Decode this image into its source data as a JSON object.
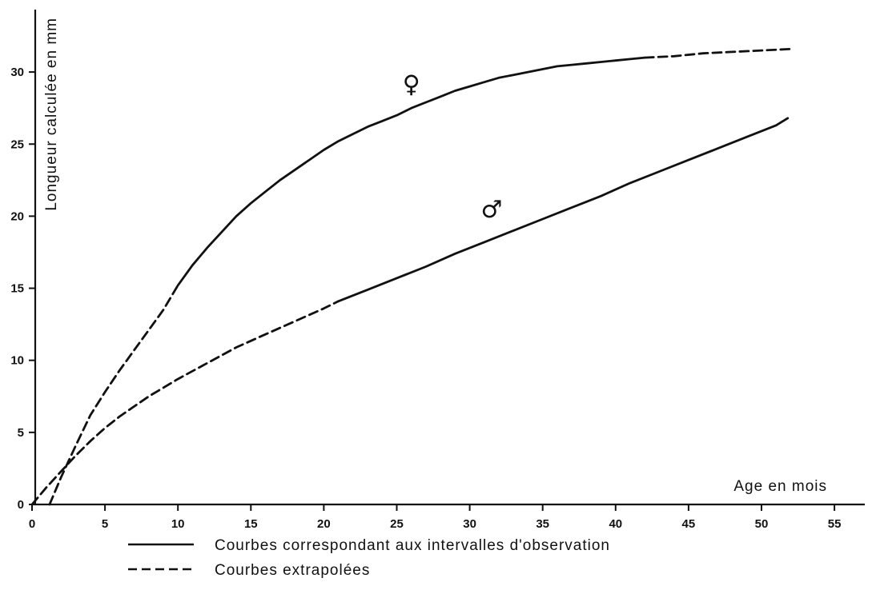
{
  "chart_data": {
    "type": "line",
    "xlabel": "Age en mois",
    "ylabel": "Longueur calculée en mm",
    "xlim": [
      0,
      58
    ],
    "ylim": [
      0,
      33
    ],
    "xticks": [
      0,
      5,
      10,
      15,
      20,
      25,
      30,
      35,
      40,
      45,
      50,
      55
    ],
    "yticks": [
      0,
      5,
      10,
      15,
      20,
      25,
      30
    ],
    "grid": false,
    "series": [
      {
        "name": "♀",
        "color": "#111111",
        "segments": [
          {
            "style": "dashed",
            "points": [
              [
                1.2,
                0
              ],
              [
                2,
                1.9
              ],
              [
                3,
                4.1
              ],
              [
                4,
                6.2
              ],
              [
                5,
                7.8
              ],
              [
                6,
                9.3
              ],
              [
                7,
                10.7
              ],
              [
                8,
                12.1
              ],
              [
                9,
                13.5
              ],
              [
                10,
                15.2
              ]
            ]
          },
          {
            "style": "solid",
            "points": [
              [
                10,
                15.2
              ],
              [
                11,
                16.6
              ],
              [
                12,
                17.8
              ],
              [
                13,
                18.9
              ],
              [
                14,
                20.0
              ],
              [
                15,
                20.9
              ],
              [
                16,
                21.7
              ],
              [
                17,
                22.5
              ],
              [
                18,
                23.2
              ],
              [
                19,
                23.9
              ],
              [
                20,
                24.6
              ],
              [
                21,
                25.2
              ],
              [
                22,
                25.7
              ],
              [
                23,
                26.2
              ],
              [
                24,
                26.6
              ],
              [
                25,
                27.0
              ],
              [
                26,
                27.5
              ],
              [
                27,
                27.9
              ],
              [
                28,
                28.3
              ],
              [
                29,
                28.7
              ],
              [
                30,
                29.0
              ],
              [
                31,
                29.3
              ],
              [
                32,
                29.6
              ],
              [
                33,
                29.8
              ],
              [
                34,
                30.0
              ],
              [
                35,
                30.2
              ],
              [
                36,
                30.4
              ],
              [
                37,
                30.5
              ],
              [
                38,
                30.6
              ],
              [
                39,
                30.7
              ],
              [
                40,
                30.8
              ],
              [
                41,
                30.9
              ],
              [
                42,
                31.0
              ]
            ]
          },
          {
            "style": "dashed",
            "points": [
              [
                42,
                31.0
              ],
              [
                44,
                31.1
              ],
              [
                46,
                31.3
              ],
              [
                48,
                31.4
              ],
              [
                50,
                31.5
              ],
              [
                52,
                31.6
              ]
            ]
          }
        ]
      },
      {
        "name": "♂",
        "color": "#111111",
        "segments": [
          {
            "style": "dashed",
            "points": [
              [
                0,
                0
              ],
              [
                1,
                1.2
              ],
              [
                2,
                2.3
              ],
              [
                3,
                3.4
              ],
              [
                4,
                4.4
              ],
              [
                5,
                5.3
              ],
              [
                6,
                6.1
              ],
              [
                7,
                6.8
              ],
              [
                8,
                7.5
              ],
              [
                9,
                8.1
              ],
              [
                10,
                8.7
              ],
              [
                12,
                9.8
              ],
              [
                14,
                10.9
              ],
              [
                16,
                11.8
              ],
              [
                18,
                12.7
              ],
              [
                20,
                13.6
              ],
              [
                21,
                14.1
              ]
            ]
          },
          {
            "style": "solid",
            "points": [
              [
                21,
                14.1
              ],
              [
                23,
                14.9
              ],
              [
                25,
                15.7
              ],
              [
                27,
                16.5
              ],
              [
                29,
                17.4
              ],
              [
                31,
                18.2
              ],
              [
                33,
                19.0
              ],
              [
                35,
                19.8
              ],
              [
                37,
                20.6
              ],
              [
                39,
                21.4
              ],
              [
                41,
                22.3
              ],
              [
                43,
                23.1
              ],
              [
                45,
                23.9
              ],
              [
                47,
                24.7
              ],
              [
                49,
                25.5
              ],
              [
                51,
                26.3
              ],
              [
                51.8,
                26.8
              ]
            ]
          }
        ]
      }
    ],
    "annotations": [
      {
        "text": "♀",
        "x": 26,
        "y": 28.6
      },
      {
        "text": "♂",
        "x": 31.5,
        "y": 19.9
      }
    ],
    "legend": {
      "position": "bottom",
      "items": [
        {
          "style": "solid",
          "label": "Courbes correspondant aux intervalles d'observation"
        },
        {
          "style": "dashed",
          "label": "Courbes extrapolées"
        }
      ]
    }
  }
}
